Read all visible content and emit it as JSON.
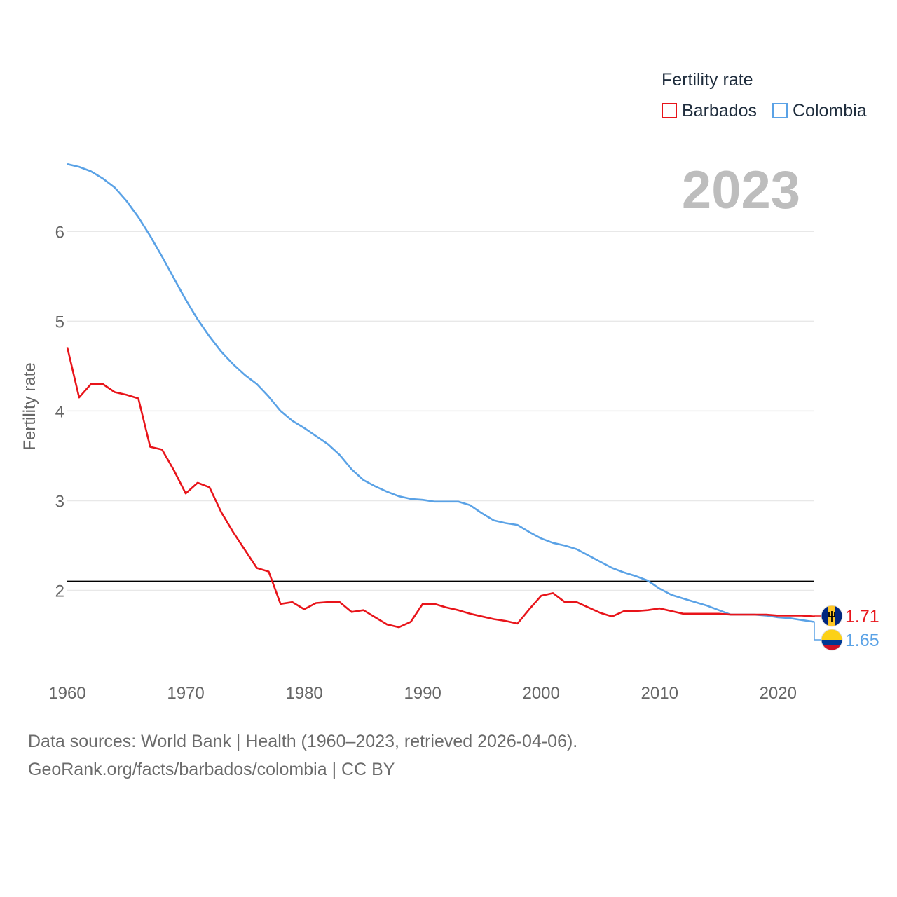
{
  "legend": {
    "title": "Fertility rate",
    "items": [
      {
        "label": "Barbados",
        "color": "#e8141a"
      },
      {
        "label": "Colombia",
        "color": "#5aa2e6"
      }
    ]
  },
  "year_badge": "2023",
  "footer": {
    "line1": "Data sources: World Bank | Health (1960–2023, retrieved 2026-04-06).",
    "line2": "GeoRank.org/facts/barbados/colombia | CC BY"
  },
  "flags": [
    {
      "country": "Barbados",
      "icon": "barbados-flag-icon"
    },
    {
      "country": "Colombia",
      "icon": "colombia-flag-icon"
    }
  ],
  "chart_data": {
    "type": "line",
    "title": "",
    "xlabel": "",
    "ylabel": "Fertility rate",
    "xlim": [
      1960,
      2023
    ],
    "ylim": [
      1.2,
      6.9
    ],
    "xticks": [
      1960,
      1970,
      1980,
      1990,
      2000,
      2010,
      2020
    ],
    "yticks": [
      2,
      3,
      4,
      5,
      6
    ],
    "grid": true,
    "reference_line": {
      "y": 2.1,
      "color": "#000000"
    },
    "x": [
      1960,
      1961,
      1962,
      1963,
      1964,
      1965,
      1966,
      1967,
      1968,
      1969,
      1970,
      1971,
      1972,
      1973,
      1974,
      1975,
      1976,
      1977,
      1978,
      1979,
      1980,
      1981,
      1982,
      1983,
      1984,
      1985,
      1986,
      1987,
      1988,
      1989,
      1990,
      1991,
      1992,
      1993,
      1994,
      1995,
      1996,
      1997,
      1998,
      1999,
      2000,
      2001,
      2002,
      2003,
      2004,
      2005,
      2006,
      2007,
      2008,
      2009,
      2010,
      2011,
      2012,
      2013,
      2014,
      2015,
      2016,
      2017,
      2018,
      2019,
      2020,
      2021,
      2022,
      2023
    ],
    "series": [
      {
        "name": "Barbados",
        "color": "#e8141a",
        "end_label": "1.71",
        "values": [
          4.71,
          4.15,
          4.3,
          4.3,
          4.21,
          4.18,
          4.14,
          3.6,
          3.57,
          3.34,
          3.08,
          3.2,
          3.15,
          2.87,
          2.65,
          2.45,
          2.25,
          2.21,
          1.85,
          1.87,
          1.79,
          1.86,
          1.87,
          1.87,
          1.76,
          1.78,
          1.7,
          1.62,
          1.59,
          1.65,
          1.85,
          1.85,
          1.81,
          1.78,
          1.74,
          1.71,
          1.68,
          1.66,
          1.63,
          1.79,
          1.94,
          1.97,
          1.87,
          1.87,
          1.81,
          1.75,
          1.71,
          1.77,
          1.77,
          1.78,
          1.8,
          1.77,
          1.74,
          1.74,
          1.74,
          1.74,
          1.73,
          1.73,
          1.73,
          1.73,
          1.72,
          1.72,
          1.72,
          1.71
        ]
      },
      {
        "name": "Colombia",
        "color": "#5aa2e6",
        "end_label": "1.65",
        "values": [
          6.75,
          6.72,
          6.67,
          6.59,
          6.49,
          6.34,
          6.16,
          5.95,
          5.72,
          5.48,
          5.24,
          5.02,
          4.83,
          4.66,
          4.52,
          4.4,
          4.3,
          4.16,
          4.0,
          3.89,
          3.81,
          3.72,
          3.63,
          3.51,
          3.35,
          3.23,
          3.16,
          3.1,
          3.05,
          3.02,
          3.01,
          2.99,
          2.99,
          2.99,
          2.95,
          2.86,
          2.78,
          2.75,
          2.73,
          2.65,
          2.58,
          2.53,
          2.5,
          2.46,
          2.39,
          2.32,
          2.25,
          2.2,
          2.16,
          2.11,
          2.02,
          1.95,
          1.91,
          1.87,
          1.83,
          1.78,
          1.73,
          1.73,
          1.73,
          1.72,
          1.7,
          1.69,
          1.67,
          1.65
        ]
      }
    ]
  }
}
